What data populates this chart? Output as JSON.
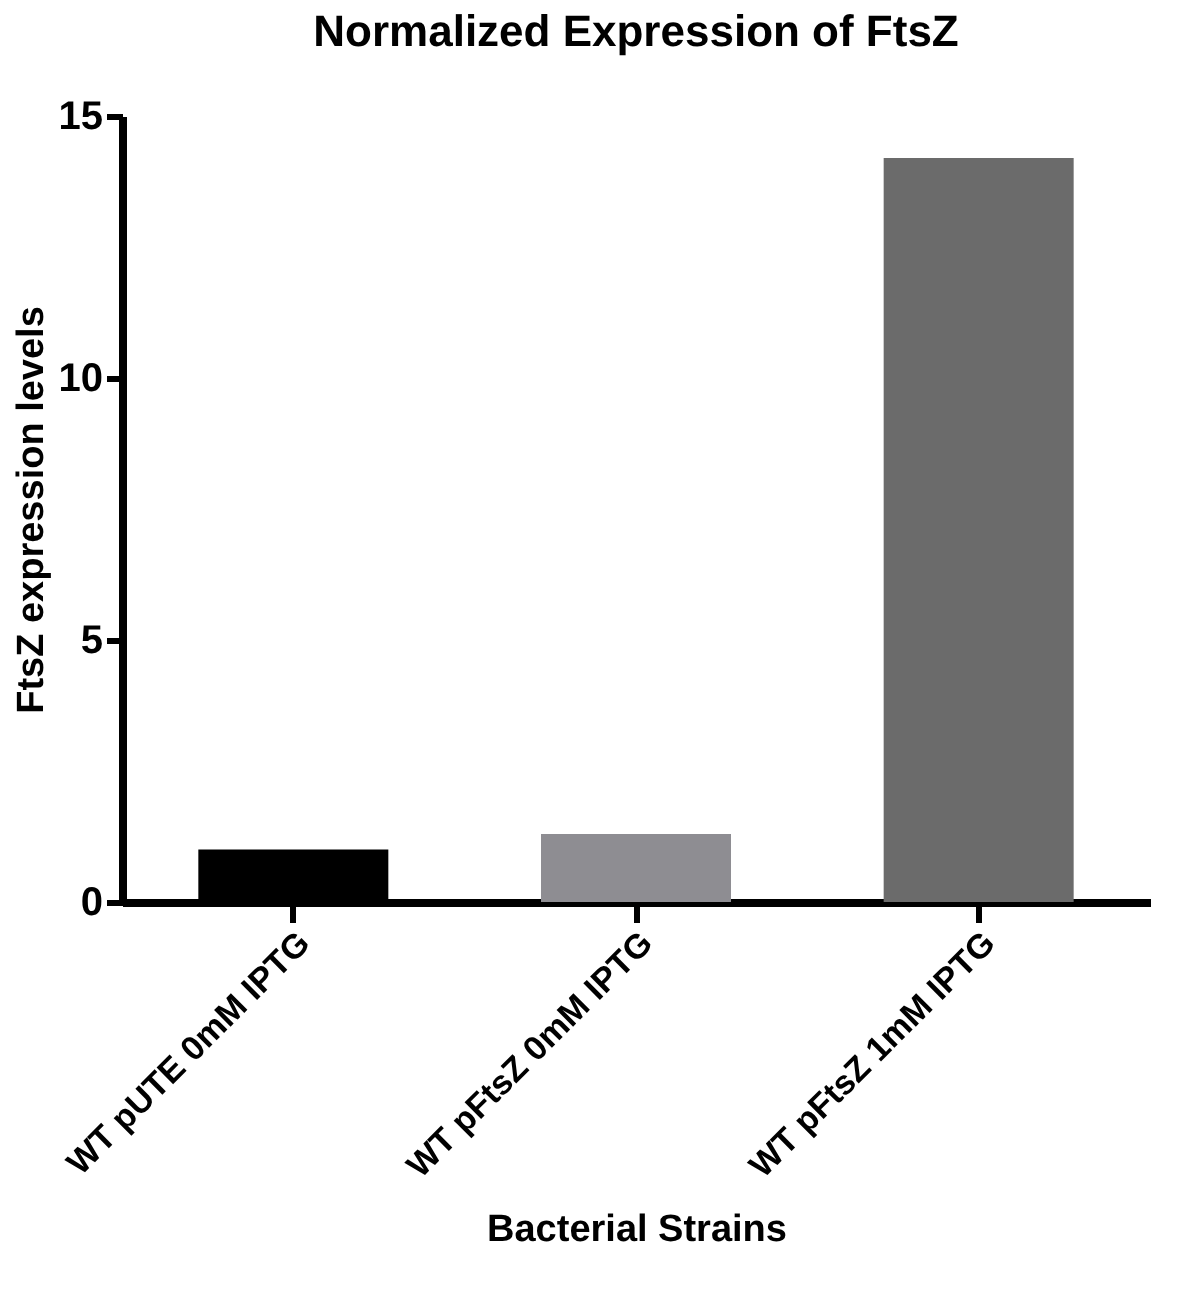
{
  "chart_data": {
    "type": "bar",
    "title": "Normalized Expression of FtsZ",
    "xlabel": "Bacterial Strains",
    "ylabel": "FtsZ expression levels",
    "categories": [
      "WT pUTE 0mM IPTG",
      "WT pFtsZ 0mM IPTG",
      "WT pFtsZ 1mM IPTG"
    ],
    "values": [
      1.0,
      1.3,
      14.2
    ],
    "colors": [
      "#000000",
      "#8e8d92",
      "#6b6b6b"
    ],
    "ylim": [
      0,
      15
    ],
    "yticks": [
      0,
      5,
      10,
      15
    ]
  }
}
